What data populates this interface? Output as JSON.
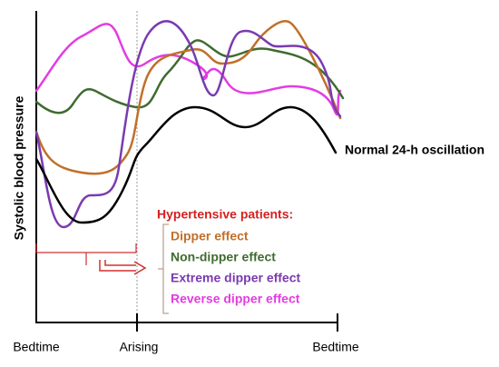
{
  "y_axis_label": "Systolic blood pressure",
  "x_labels": [
    "Bedtime",
    "Arising",
    "Bedtime"
  ],
  "normal_label": "Normal 24-h oscillation",
  "legend": {
    "title": "Hypertensive patients:",
    "entries": [
      "Dipper effect",
      "Non-dipper effect",
      "Extreme dipper effect",
      "Reverse dipper effect"
    ]
  }
}
